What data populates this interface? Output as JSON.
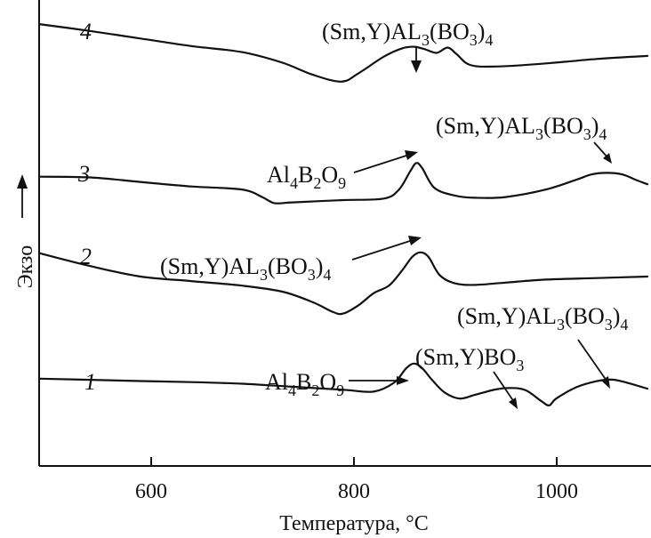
{
  "chart_data": {
    "type": "line",
    "title": "",
    "xlabel": "Температура, °C",
    "ylabel": "Экзо",
    "xlim": [
      500,
      1100
    ],
    "x_ticks": [
      600,
      800,
      1000
    ],
    "grid": false,
    "series": [
      {
        "name": "1",
        "points": [
          [
            500,
            0.72
          ],
          [
            550,
            0.64
          ],
          [
            600,
            0.56
          ],
          [
            650,
            0.49
          ],
          [
            700,
            0.38
          ],
          [
            750,
            0.18
          ],
          [
            800,
            -0.02
          ],
          [
            830,
            -0.14
          ],
          [
            850,
            0.45
          ],
          [
            862,
            1.4
          ],
          [
            870,
            1.72
          ],
          [
            878,
            1.4
          ],
          [
            888,
            0.6
          ],
          [
            900,
            -0.2
          ],
          [
            915,
            -0.6
          ],
          [
            930,
            -0.35
          ],
          [
            950,
            0.0
          ],
          [
            965,
            0.1
          ],
          [
            980,
            -0.05
          ],
          [
            995,
            -0.75
          ],
          [
            1003,
            -1.05
          ],
          [
            1010,
            -0.6
          ],
          [
            1030,
            0.15
          ],
          [
            1050,
            0.55
          ],
          [
            1065,
            0.65
          ],
          [
            1080,
            0.45
          ],
          [
            1100,
            0.05
          ]
        ]
      },
      {
        "name": "2",
        "points": [
          [
            500,
            0.55
          ],
          [
            550,
            -0.3
          ],
          [
            600,
            -1.0
          ],
          [
            650,
            -1.3
          ],
          [
            700,
            -1.6
          ],
          [
            740,
            -2.0
          ],
          [
            770,
            -2.7
          ],
          [
            790,
            -3.35
          ],
          [
            800,
            -3.45
          ],
          [
            815,
            -2.9
          ],
          [
            830,
            -2.1
          ],
          [
            845,
            -1.6
          ],
          [
            858,
            -0.6
          ],
          [
            868,
            0.3
          ],
          [
            876,
            0.6
          ],
          [
            884,
            0.3
          ],
          [
            895,
            -0.9
          ],
          [
            910,
            -1.45
          ],
          [
            930,
            -1.55
          ],
          [
            960,
            -1.4
          ],
          [
            1000,
            -1.2
          ],
          [
            1050,
            -1.1
          ],
          [
            1100,
            -1.0
          ]
        ]
      },
      {
        "name": "3",
        "points": [
          [
            500,
            0.55
          ],
          [
            550,
            0.5
          ],
          [
            600,
            0.2
          ],
          [
            650,
            -0.1
          ],
          [
            700,
            -0.3
          ],
          [
            720,
            -0.8
          ],
          [
            732,
            -1.2
          ],
          [
            750,
            -1.15
          ],
          [
            800,
            -1.0
          ],
          [
            840,
            -0.9
          ],
          [
            855,
            -0.3
          ],
          [
            866,
            0.9
          ],
          [
            872,
            1.45
          ],
          [
            878,
            1.1
          ],
          [
            890,
            -0.2
          ],
          [
            910,
            -0.7
          ],
          [
            930,
            -0.85
          ],
          [
            960,
            -0.8
          ],
          [
            1000,
            -0.3
          ],
          [
            1030,
            0.35
          ],
          [
            1045,
            0.7
          ],
          [
            1060,
            0.8
          ],
          [
            1075,
            0.7
          ],
          [
            1090,
            0.3
          ],
          [
            1100,
            0.05
          ]
        ]
      },
      {
        "name": "4",
        "points": [
          [
            500,
            1.05
          ],
          [
            550,
            0.6
          ],
          [
            600,
            0.1
          ],
          [
            650,
            -0.4
          ],
          [
            700,
            -0.8
          ],
          [
            740,
            -1.5
          ],
          [
            770,
            -2.3
          ],
          [
            798,
            -2.75
          ],
          [
            815,
            -2.2
          ],
          [
            840,
            -1.1
          ],
          [
            858,
            -0.55
          ],
          [
            870,
            -0.45
          ],
          [
            880,
            -0.6
          ],
          [
            892,
            -0.85
          ],
          [
            903,
            -0.5
          ],
          [
            912,
            -0.95
          ],
          [
            925,
            -1.65
          ],
          [
            950,
            -1.75
          ],
          [
            1000,
            -1.55
          ],
          [
            1050,
            -1.25
          ],
          [
            1100,
            -1.05
          ]
        ]
      }
    ],
    "annotations": {
      "c1_al4b2o9": {
        "pre": "Al",
        "s1": "4",
        "mid": "B",
        "s2": "2",
        "mid2": "O",
        "s3": "9"
      },
      "c1_smybo3": {
        "pre": "(Sm,Y)BO",
        "s1": "3"
      },
      "c1_smyal": {
        "pre": "(Sm,Y)AL",
        "s1": "3",
        "mid": "(BO",
        "s2": "3",
        "post": ")",
        "s3": "4"
      },
      "c2_smyal": {
        "pre": "(Sm,Y)AL",
        "s1": "3",
        "mid": "(BO",
        "s2": "3",
        "post": ")",
        "s3": "4"
      },
      "c3_al4b2o9": {
        "pre": "Al",
        "s1": "4",
        "mid": "B",
        "s2": "2",
        "mid2": "O",
        "s3": "9"
      },
      "c3_smyal": {
        "pre": "(Sm,Y)AL",
        "s1": "3",
        "mid": "(BO",
        "s2": "3",
        "post": ")",
        "s3": "4"
      },
      "c4_smyal": {
        "pre": "(Sm,Y)AL",
        "s1": "3",
        "mid": "(BO",
        "s2": "3",
        "post": ")",
        "s3": "4"
      }
    }
  }
}
